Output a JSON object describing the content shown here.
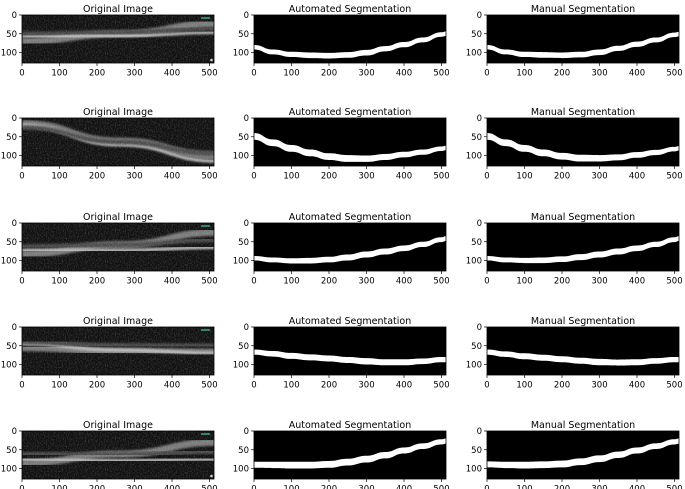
{
  "columns": [
    {
      "kind": "oct",
      "title": "Original Image"
    },
    {
      "kind": "seg",
      "title": "Automated Segmentation"
    },
    {
      "kind": "seg",
      "title": "Manual Segmentation"
    }
  ],
  "x_ticks": [
    "0",
    "100",
    "200",
    "300",
    "400",
    "500"
  ],
  "y_ticks": [
    "0",
    "50",
    "100"
  ],
  "image_extent": {
    "width": 512,
    "height": 128
  },
  "rows": [
    {
      "oct": {
        "bands": [
          [
            0,
            70,
            520,
            23
          ],
          [
            0,
            58,
            520,
            46
          ],
          [
            0,
            50,
            520,
            36
          ]
        ],
        "marker_top": true,
        "marker_bottom": true
      },
      "auto": {
        "top": [
          [
            0,
            80
          ],
          [
            50,
            92
          ],
          [
            100,
            98
          ],
          [
            150,
            100
          ],
          [
            200,
            101
          ],
          [
            250,
            99
          ],
          [
            300,
            93
          ],
          [
            350,
            83
          ],
          [
            400,
            72
          ],
          [
            450,
            60
          ],
          [
            500,
            46
          ],
          [
            512,
            44
          ]
        ],
        "thick": [
          12,
          13,
          14,
          15,
          15,
          15,
          15,
          14,
          14,
          13,
          12,
          12
        ]
      },
      "manual": {
        "top": [
          [
            0,
            80
          ],
          [
            50,
            92
          ],
          [
            100,
            98
          ],
          [
            150,
            99
          ],
          [
            200,
            100
          ],
          [
            250,
            98
          ],
          [
            300,
            92
          ],
          [
            350,
            82
          ],
          [
            400,
            71
          ],
          [
            450,
            60
          ],
          [
            500,
            47
          ],
          [
            512,
            45
          ]
        ],
        "thick": [
          12,
          13,
          14,
          15,
          15,
          15,
          15,
          14,
          14,
          13,
          12,
          12
        ]
      }
    },
    {
      "oct": {
        "bands": [
          [
            0,
            15,
            520,
            100
          ],
          [
            0,
            20,
            520,
            115
          ],
          [
            0,
            25,
            520,
            95
          ]
        ],
        "marker_top": false,
        "marker_bottom": false
      },
      "auto": {
        "top": [
          [
            0,
            40
          ],
          [
            50,
            57
          ],
          [
            100,
            72
          ],
          [
            150,
            84
          ],
          [
            200,
            94
          ],
          [
            250,
            99
          ],
          [
            300,
            100
          ],
          [
            350,
            96
          ],
          [
            400,
            90
          ],
          [
            450,
            84
          ],
          [
            500,
            76
          ],
          [
            512,
            74
          ]
        ],
        "thick": [
          18,
          18,
          18,
          18,
          18,
          18,
          17,
          16,
          15,
          14,
          12,
          12
        ]
      },
      "manual": {
        "top": [
          [
            0,
            40
          ],
          [
            50,
            57
          ],
          [
            100,
            72
          ],
          [
            150,
            84
          ],
          [
            200,
            93
          ],
          [
            250,
            98
          ],
          [
            300,
            99
          ],
          [
            350,
            97
          ],
          [
            400,
            91
          ],
          [
            450,
            85
          ],
          [
            500,
            77
          ],
          [
            512,
            75
          ]
        ],
        "thick": [
          18,
          18,
          18,
          18,
          18,
          18,
          17,
          16,
          15,
          14,
          12,
          12
        ]
      }
    },
    {
      "oct": {
        "bands": [
          [
            0,
            83,
            520,
            25
          ],
          [
            0,
            73,
            520,
            65
          ],
          [
            0,
            63,
            520,
            45
          ]
        ],
        "marker_top": true,
        "marker_bottom": false
      },
      "auto": {
        "top": [
          [
            0,
            88
          ],
          [
            50,
            92
          ],
          [
            100,
            94
          ],
          [
            150,
            93
          ],
          [
            200,
            90
          ],
          [
            250,
            84
          ],
          [
            300,
            76
          ],
          [
            350,
            68
          ],
          [
            400,
            60
          ],
          [
            450,
            50
          ],
          [
            500,
            38
          ],
          [
            512,
            35
          ]
        ],
        "thick": [
          12,
          13,
          14,
          15,
          15,
          16,
          16,
          16,
          15,
          14,
          13,
          13
        ]
      },
      "manual": {
        "top": [
          [
            0,
            88
          ],
          [
            50,
            92
          ],
          [
            100,
            93
          ],
          [
            150,
            92
          ],
          [
            200,
            89
          ],
          [
            250,
            83
          ],
          [
            300,
            76
          ],
          [
            350,
            68
          ],
          [
            400,
            60
          ],
          [
            450,
            50
          ],
          [
            500,
            38
          ],
          [
            512,
            35
          ]
        ],
        "thick": [
          12,
          13,
          14,
          15,
          15,
          16,
          16,
          16,
          15,
          14,
          13,
          13
        ]
      }
    },
    {
      "oct": {
        "bands": [
          [
            0,
            55,
            520,
            67
          ],
          [
            0,
            45,
            520,
            70
          ],
          [
            0,
            40,
            520,
            50
          ]
        ],
        "marker_top": true,
        "marker_bottom": false
      },
      "auto": {
        "top": [
          [
            0,
            60
          ],
          [
            50,
            64
          ],
          [
            100,
            69
          ],
          [
            150,
            73
          ],
          [
            200,
            76
          ],
          [
            250,
            80
          ],
          [
            300,
            83
          ],
          [
            350,
            86
          ],
          [
            400,
            86
          ],
          [
            450,
            84
          ],
          [
            500,
            80
          ],
          [
            512,
            80
          ]
        ],
        "thick": [
          14,
          15,
          16,
          16,
          16,
          16,
          17,
          16,
          16,
          15,
          14,
          14
        ]
      },
      "manual": {
        "top": [
          [
            0,
            60
          ],
          [
            50,
            65
          ],
          [
            100,
            70
          ],
          [
            150,
            74
          ],
          [
            200,
            78
          ],
          [
            250,
            82
          ],
          [
            300,
            85
          ],
          [
            350,
            87
          ],
          [
            400,
            86
          ],
          [
            450,
            83
          ],
          [
            500,
            80
          ],
          [
            512,
            80
          ]
        ],
        "thick": [
          14,
          15,
          16,
          16,
          16,
          16,
          17,
          16,
          16,
          15,
          14,
          14
        ]
      }
    },
    {
      "oct": {
        "bands": [
          [
            0,
            85,
            520,
            30
          ],
          [
            0,
            75,
            520,
            75
          ],
          [
            0,
            62,
            520,
            55
          ]
        ],
        "marker_top": true,
        "marker_bottom": true
      },
      "auto": {
        "top": [
          [
            0,
            82
          ],
          [
            50,
            82
          ],
          [
            100,
            82
          ],
          [
            150,
            82
          ],
          [
            200,
            80
          ],
          [
            250,
            74
          ],
          [
            300,
            66
          ],
          [
            350,
            56
          ],
          [
            400,
            44
          ],
          [
            450,
            33
          ],
          [
            500,
            22
          ],
          [
            512,
            20
          ]
        ],
        "thick": [
          16,
          17,
          18,
          18,
          18,
          18,
          18,
          17,
          16,
          15,
          14,
          14
        ]
      },
      "manual": {
        "top": [
          [
            0,
            81
          ],
          [
            50,
            82
          ],
          [
            100,
            82
          ],
          [
            150,
            81
          ],
          [
            200,
            79
          ],
          [
            250,
            73
          ],
          [
            300,
            65
          ],
          [
            350,
            55
          ],
          [
            400,
            44
          ],
          [
            450,
            33
          ],
          [
            500,
            22
          ],
          [
            512,
            20
          ]
        ],
        "thick": [
          16,
          17,
          18,
          18,
          18,
          18,
          18,
          17,
          16,
          15,
          14,
          14
        ]
      }
    }
  ]
}
